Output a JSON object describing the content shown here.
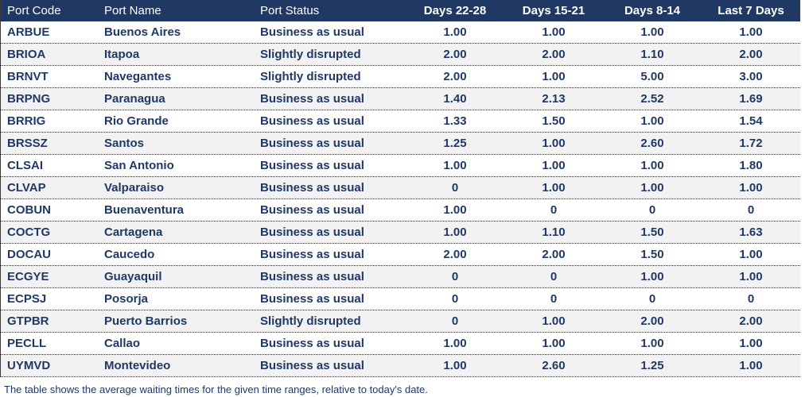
{
  "table": {
    "columns": [
      {
        "key": "code",
        "label": "Port Code"
      },
      {
        "key": "name",
        "label": "Port Name"
      },
      {
        "key": "status",
        "label": "Port Status"
      },
      {
        "key": "d22_28",
        "label": "Days 22-28"
      },
      {
        "key": "d15_21",
        "label": "Days 15-21"
      },
      {
        "key": "d8_14",
        "label": "Days 8-14"
      },
      {
        "key": "last7",
        "label": "Last 7 Days"
      }
    ],
    "rows": [
      {
        "code": "ARBUE",
        "name": "Buenos Aires",
        "status": "Business as usual",
        "d22_28": "1.00",
        "d15_21": "1.00",
        "d8_14": "1.00",
        "last7": "1.00"
      },
      {
        "code": "BRIOA",
        "name": "Itapoa",
        "status": "Slightly disrupted",
        "d22_28": "2.00",
        "d15_21": "2.00",
        "d8_14": "1.10",
        "last7": "2.00"
      },
      {
        "code": "BRNVT",
        "name": "Navegantes",
        "status": "Slightly disrupted",
        "d22_28": "2.00",
        "d15_21": "1.00",
        "d8_14": "5.00",
        "last7": "3.00"
      },
      {
        "code": "BRPNG",
        "name": "Paranagua",
        "status": "Business as usual",
        "d22_28": "1.40",
        "d15_21": "2.13",
        "d8_14": "2.52",
        "last7": "1.69"
      },
      {
        "code": "BRRIG",
        "name": "Rio Grande",
        "status": "Business as usual",
        "d22_28": "1.33",
        "d15_21": "1.50",
        "d8_14": "1.00",
        "last7": "1.54"
      },
      {
        "code": "BRSSZ",
        "name": "Santos",
        "status": "Business as usual",
        "d22_28": "1.25",
        "d15_21": "1.00",
        "d8_14": "2.60",
        "last7": "1.72"
      },
      {
        "code": "CLSAI",
        "name": "San Antonio",
        "status": "Business as usual",
        "d22_28": "1.00",
        "d15_21": "1.00",
        "d8_14": "1.00",
        "last7": "1.80"
      },
      {
        "code": "CLVAP",
        "name": "Valparaiso",
        "status": "Business as usual",
        "d22_28": "0",
        "d15_21": "1.00",
        "d8_14": "1.00",
        "last7": "1.00"
      },
      {
        "code": "COBUN",
        "name": "Buenaventura",
        "status": "Business as usual",
        "d22_28": "1.00",
        "d15_21": "0",
        "d8_14": "0",
        "last7": "0"
      },
      {
        "code": "COCTG",
        "name": "Cartagena",
        "status": "Business as usual",
        "d22_28": "1.00",
        "d15_21": "1.10",
        "d8_14": "1.50",
        "last7": "1.63"
      },
      {
        "code": "DOCAU",
        "name": "Caucedo",
        "status": "Business as usual",
        "d22_28": "2.00",
        "d15_21": "2.00",
        "d8_14": "1.50",
        "last7": "1.00"
      },
      {
        "code": "ECGYE",
        "name": "Guayaquil",
        "status": "Business as usual",
        "d22_28": "0",
        "d15_21": "0",
        "d8_14": "1.00",
        "last7": "1.00"
      },
      {
        "code": "ECPSJ",
        "name": "Posorja",
        "status": "Business as usual",
        "d22_28": "0",
        "d15_21": "0",
        "d8_14": "0",
        "last7": "0"
      },
      {
        "code": "GTPBR",
        "name": "Puerto Barrios",
        "status": "Slightly disrupted",
        "d22_28": "0",
        "d15_21": "1.00",
        "d8_14": "2.00",
        "last7": "2.00"
      },
      {
        "code": "PECLL",
        "name": "Callao",
        "status": "Business as usual",
        "d22_28": "1.00",
        "d15_21": "1.00",
        "d8_14": "1.00",
        "last7": "1.00"
      },
      {
        "code": "UYMVD",
        "name": "Montevideo",
        "status": "Business as usual",
        "d22_28": "1.00",
        "d15_21": "2.60",
        "d8_14": "1.25",
        "last7": "1.00"
      }
    ]
  },
  "footer": {
    "note": "The table shows the average waiting times for the given time ranges, relative to today's date."
  },
  "colors": {
    "header_bg": "#1F3864",
    "header_text": "#FFFFFF",
    "row_text": "#1F3864",
    "row_alt_bg": "#F2F2F2",
    "row_bg": "#FFFFFF",
    "separator": "#2A2A2A"
  }
}
